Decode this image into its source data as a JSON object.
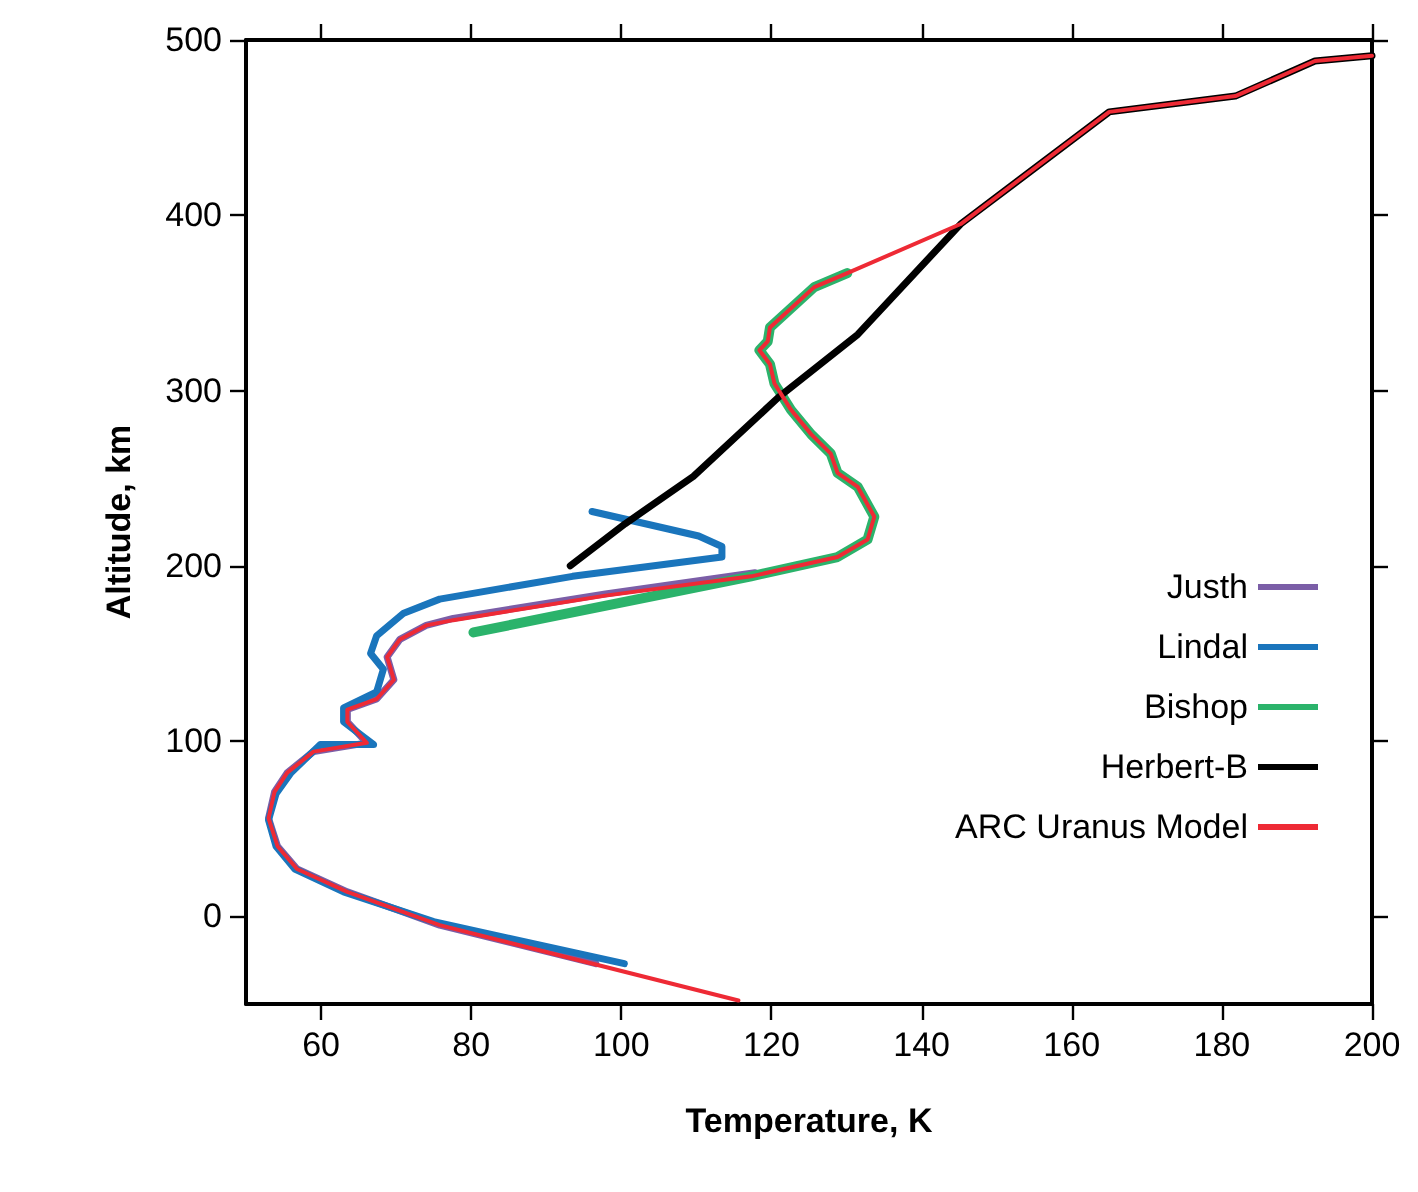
{
  "chart_data": {
    "type": "line",
    "xlabel": "Temperature, K",
    "ylabel": "Altitude, km",
    "xlim": [
      50,
      200
    ],
    "xticks": [
      60,
      80,
      100,
      120,
      140,
      160,
      180,
      200
    ],
    "ylim": [
      -50,
      500
    ],
    "yticks": [
      0,
      100,
      200,
      300,
      400,
      500
    ],
    "grid": false,
    "legend": "right",
    "marker": "none",
    "line_style": "solid",
    "series": [
      {
        "name": "Justh",
        "color": "#7b5ea7",
        "x": [
          96.6,
          75.8,
          63.5,
          56.8,
          54.2,
          53,
          53.8,
          55.5,
          59,
          66.1,
          63.5,
          63.5,
          67.4,
          69.7,
          68.8,
          70.5,
          74,
          77.6,
          97.9,
          117.8
        ],
        "values": [
          -27,
          -5,
          14,
          27,
          40,
          56,
          71,
          82,
          94,
          99,
          111,
          118,
          124,
          135,
          148,
          158,
          166,
          170,
          184,
          196
        ]
      },
      {
        "name": "Lindal",
        "color": "#1a75bc",
        "x": [
          100.4,
          75,
          63,
          56.5,
          54,
          53,
          54,
          56,
          59.9,
          67,
          63,
          63,
          67.4,
          68.3,
          66.6,
          67.4,
          71,
          75.8,
          93.5,
          113.4,
          113.4,
          110.3,
          96.1
        ],
        "values": [
          -27,
          -3,
          14,
          27,
          40,
          55,
          70,
          82,
          98,
          98,
          111,
          119,
          128,
          141,
          150,
          160,
          173,
          181,
          194,
          205,
          211,
          217,
          231
        ]
      },
      {
        "name": "Bishop",
        "color": "#2bb36b",
        "x": [
          80.3,
          117.3,
          128.8,
          132.8,
          133.7,
          131.5,
          128.8,
          127.9,
          125.3,
          122.6,
          120.4,
          119.8,
          118.4,
          119.5,
          119.8,
          125.7,
          130.1
        ],
        "values": [
          162,
          194,
          205,
          215,
          228,
          245,
          253,
          264,
          275,
          289,
          304,
          315,
          323,
          328,
          336,
          359,
          367
        ]
      },
      {
        "name": "Herbert-B",
        "color": "#000000",
        "x": [
          93.2,
          100.5,
          109.6,
          120.9,
          131.5,
          145.2,
          165,
          181.8,
          192.4,
          200
        ],
        "values": [
          200,
          224,
          251,
          296,
          332,
          395,
          459,
          468,
          488,
          491
        ]
      },
      {
        "name": "ARC Uranus Model",
        "color": "#ee2a35",
        "x": [
          115.6,
          75.8,
          63.5,
          56.8,
          54.2,
          53,
          53.8,
          55.5,
          59,
          66.1,
          63.5,
          63.5,
          67.4,
          69.7,
          68.8,
          70.5,
          74,
          77.6,
          97.9,
          117.3,
          128.8,
          132.8,
          133.7,
          131.5,
          128.8,
          127.9,
          125.3,
          122.6,
          120.4,
          119.8,
          118.4,
          119.5,
          119.8,
          125.7,
          130.1,
          145.2,
          165,
          181.8,
          192.4,
          200
        ],
        "values": [
          -48,
          -5,
          14,
          27,
          40,
          56,
          71,
          82,
          94,
          99,
          111,
          118,
          124,
          135,
          148,
          158,
          166,
          169,
          183,
          194,
          205,
          215,
          228,
          245,
          253,
          264,
          275,
          289,
          304,
          315,
          323,
          328,
          336,
          359,
          367,
          395,
          459,
          468,
          488,
          491
        ]
      }
    ]
  }
}
